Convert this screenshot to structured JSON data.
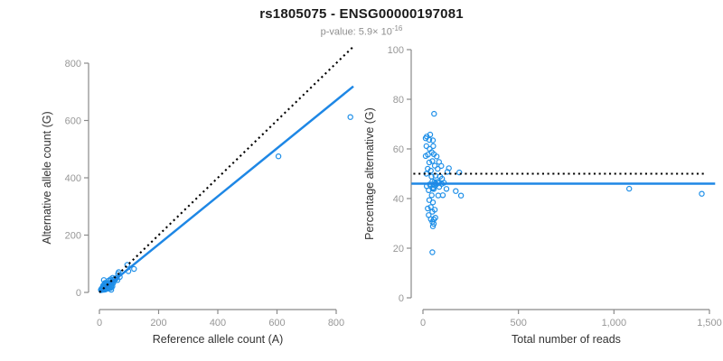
{
  "header": {
    "title": "rs1805075 - ENSG00000197081",
    "p_value_base": "p-value: 5.9× 10",
    "p_value_exponent": "-16"
  },
  "colors": {
    "point_blue": "#1E8FE8",
    "line_blue": "#1E87E5",
    "dotted_black": "#000000",
    "axis_gray": "#8a8a8a",
    "tick_label_gray": "#979797",
    "axis_title_dark": "#333333"
  },
  "samples_A_G": [
    [
      15,
      43
    ],
    [
      7,
      13
    ],
    [
      13,
      25
    ],
    [
      19,
      33
    ],
    [
      5,
      9
    ],
    [
      12,
      21
    ],
    [
      21,
      33
    ],
    [
      7,
      11
    ],
    [
      14,
      21
    ],
    [
      11,
      15
    ],
    [
      19,
      27
    ],
    [
      24,
      33
    ],
    [
      6,
      8
    ],
    [
      31,
      41
    ],
    [
      15,
      18
    ],
    [
      22,
      27
    ],
    [
      38,
      46
    ],
    [
      12,
      13
    ],
    [
      29,
      33
    ],
    [
      45,
      51
    ],
    [
      20,
      21
    ],
    [
      37,
      40
    ],
    [
      9,
      9
    ],
    [
      63,
      65
    ],
    [
      94,
      96
    ],
    [
      23,
      22
    ],
    [
      33,
      32
    ],
    [
      46,
      44
    ],
    [
      52,
      48
    ],
    [
      65,
      71
    ],
    [
      32,
      28
    ],
    [
      43,
      37
    ],
    [
      38,
      32
    ],
    [
      30,
      25
    ],
    [
      59,
      51
    ],
    [
      19,
      16
    ],
    [
      28,
      22
    ],
    [
      47,
      38
    ],
    [
      26,
      23
    ],
    [
      35,
      30
    ],
    [
      41,
      36
    ],
    [
      53,
      45
    ],
    [
      98,
      74
    ],
    [
      117,
      82
    ],
    [
      69,
      54
    ],
    [
      17,
      13
    ],
    [
      32,
      25
    ],
    [
      11,
      9
    ],
    [
      27,
      19
    ],
    [
      47,
      33
    ],
    [
      61,
      43
    ],
    [
      30,
      24
    ],
    [
      20,
      13
    ],
    [
      32,
      20
    ],
    [
      16,
      9
    ],
    [
      26,
      15
    ],
    [
      40,
      22
    ],
    [
      20,
      10
    ],
    [
      32,
      17
    ],
    [
      44,
      21
    ],
    [
      28,
      13
    ],
    [
      39,
      18
    ],
    [
      34,
      15
    ],
    [
      40,
      17
    ],
    [
      37,
      15
    ],
    [
      40,
      9
    ],
    [
      605,
      475
    ],
    [
      848,
      612
    ]
  ],
  "chart_data": [
    {
      "type": "scatter",
      "name": "counts-plot",
      "xlabel": "Reference allele count (A)",
      "ylabel": "Alternative allele count (G)",
      "xticks": [
        0,
        200,
        400,
        600,
        800
      ],
      "yticks": [
        0,
        200,
        400,
        600,
        800
      ],
      "xlim": [
        0,
        870
      ],
      "ylim": [
        0,
        870
      ],
      "grid": false,
      "points_mode": "counts",
      "points_note": "x = reference allele count A, y = alternative allele count G from samples_A_G",
      "lines": [
        {
          "name": "regression",
          "style": "solid",
          "slope": 0.838,
          "intercept": 0,
          "from": [
            0,
            0
          ],
          "to": [
            858,
            719
          ]
        },
        {
          "name": "identity",
          "style": "dotted",
          "slope": 1,
          "intercept": 0,
          "from": [
            0,
            0
          ],
          "to": [
            858,
            858
          ]
        }
      ]
    },
    {
      "type": "scatter",
      "name": "percentage-plot",
      "xlabel": "Total number of reads",
      "ylabel": "Percentage alternative (G)",
      "xticks": [
        0,
        500,
        1000,
        1500
      ],
      "yticks": [
        0,
        20,
        40,
        60,
        80,
        100
      ],
      "xlim": [
        0,
        1530
      ],
      "ylim": [
        0,
        100
      ],
      "grid": false,
      "points_mode": "percentage",
      "points_note": "x = A+G total reads, y = 100*G/(A+G) from samples_A_G",
      "lines": [
        {
          "name": "mean-percentage",
          "style": "solid",
          "y": 46,
          "from": [
            -60,
            46
          ],
          "to": [
            1530,
            46
          ]
        },
        {
          "name": "expected-50pct",
          "style": "dotted",
          "y": 50,
          "from": [
            -50,
            50
          ],
          "to": [
            1480,
            50
          ]
        }
      ]
    }
  ]
}
